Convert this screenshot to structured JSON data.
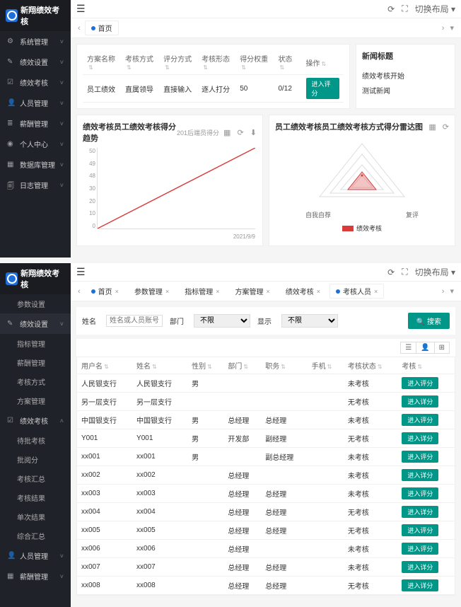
{
  "app": {
    "name": "新翔绩效考核"
  },
  "topbar": {
    "refresh": "⟳",
    "fullscreen": "⛶",
    "menu": "切换布局",
    "menu_chev": "▾"
  },
  "nav1": [
    {
      "icon": "⚙",
      "label": "系统管理",
      "chev": "˅"
    },
    {
      "icon": "✎",
      "label": "绩效设置",
      "chev": "˅"
    },
    {
      "icon": "☑",
      "label": "绩效考核",
      "chev": "˅"
    },
    {
      "icon": "👤",
      "label": "人员管理",
      "chev": "˅"
    },
    {
      "icon": "≣",
      "label": "薪酬管理",
      "chev": "˅"
    },
    {
      "icon": "◉",
      "label": "个人中心",
      "chev": "˅"
    },
    {
      "icon": "▦",
      "label": "数据库管理",
      "chev": "˅"
    },
    {
      "icon": "🗐",
      "label": "日志管理",
      "chev": "˅"
    }
  ],
  "tabs1": {
    "home": "首页"
  },
  "plan_table": {
    "headers": [
      "方案名称",
      "考核方式",
      "评分方式",
      "考核形态",
      "得分权重",
      "状态",
      "操作"
    ],
    "row": [
      "员工绩效",
      "直属领导",
      "直接输入",
      "逐人打分",
      "50",
      "0/12"
    ],
    "action": "进入评分"
  },
  "news": {
    "title": "新闻标题",
    "items": [
      "绩效考核开始",
      "测试新闻"
    ]
  },
  "trend": {
    "title": "绩效考核员工绩效考核得分趋势",
    "subtitle": "201后端员得分",
    "yticks": [
      "50",
      "49",
      "48",
      "30",
      "20",
      "10",
      "0"
    ],
    "xlabel": "2021/9/9",
    "line_color": "#d93a3a",
    "data": [
      [
        0,
        0
      ],
      [
        100,
        100
      ]
    ]
  },
  "radar": {
    "title": "员工绩效考核员工绩效考核方式得分雷达图",
    "labels": [
      "自我自荐",
      "复评"
    ],
    "legend": "绩效考核",
    "color": "#d93a3a"
  },
  "nav2_top": [
    {
      "label": "参数设置"
    }
  ],
  "nav2_active": {
    "icon": "✎",
    "label": "绩效设置"
  },
  "nav2_subs": [
    "指标管理",
    "薪酬管理",
    "考核方式",
    "方案管理"
  ],
  "nav2_block": {
    "icon": "☑",
    "label": "绩效考核"
  },
  "nav2_subs2": [
    "待批考核",
    "批阅分",
    "考核汇总",
    "考核结果",
    "单次结果",
    "综合汇总"
  ],
  "nav2_bottom": [
    {
      "icon": "👤",
      "label": "人员管理",
      "chev": "˅"
    },
    {
      "icon": "▦",
      "label": "薪酬管理",
      "chev": "˅"
    }
  ],
  "tabs2": [
    {
      "label": "首页",
      "active": false,
      "dot": true
    },
    {
      "label": "参数管理",
      "active": false
    },
    {
      "label": "指标管理",
      "active": false
    },
    {
      "label": "方案管理",
      "active": false
    },
    {
      "label": "绩效考核",
      "active": false
    },
    {
      "label": "考核人员",
      "active": true,
      "dot": true
    }
  ],
  "filters": {
    "name_label": "姓名",
    "name_ph": "姓名或人员账号搜索",
    "dept_label": "部门",
    "dept_val": "不限",
    "status_label": "显示",
    "status_val": "不限",
    "search": "搜索",
    "search_icon": "🔍"
  },
  "toolbar": [
    "☰",
    "👤",
    "⊞"
  ],
  "person_table": {
    "headers": [
      "用户名",
      "姓名",
      "性别",
      "部门",
      "职务",
      "手机",
      "考核状态",
      "考核"
    ],
    "rows": [
      [
        "人民银支行",
        "人民银支行",
        "男",
        "",
        "",
        "",
        "未考核",
        "进入评分"
      ],
      [
        "另一层支行",
        "另一层支行",
        "",
        "",
        "",
        "",
        "无考核",
        "进入详分"
      ],
      [
        "中国银支行",
        "中国银支行",
        "男",
        "总经理",
        "总经理",
        "",
        "未考核",
        "进入评分"
      ],
      [
        "Y001",
        "Y001",
        "男",
        "开发部",
        "副经理",
        "",
        "无考核",
        "进入详分"
      ],
      [
        "xx001",
        "xx001",
        "男",
        "",
        "副总经理",
        "",
        "未考核",
        "进入评分"
      ],
      [
        "xx002",
        "xx002",
        "",
        "总经理",
        "",
        "",
        "未考核",
        "进入详分"
      ],
      [
        "xx003",
        "xx003",
        "",
        "总经理",
        "总经理",
        "",
        "未考核",
        "进入评分"
      ],
      [
        "xx004",
        "xx004",
        "",
        "总经理",
        "总经理",
        "",
        "无考核",
        "进入详分"
      ],
      [
        "xx005",
        "xx005",
        "",
        "总经理",
        "总经理",
        "",
        "无考核",
        "进入评分"
      ],
      [
        "xx006",
        "xx006",
        "",
        "总经理",
        "",
        "",
        "未考核",
        "进入评分"
      ],
      [
        "xx007",
        "xx007",
        "",
        "总经理",
        "总经理",
        "",
        "未考核",
        "进入详分"
      ],
      [
        "xx008",
        "xx008",
        "",
        "总经理",
        "总经理",
        "",
        "无考核",
        "进入详分"
      ]
    ]
  },
  "colors": {
    "accent": "#009688",
    "brand": "#1e6fd9",
    "danger": "#d93a3a"
  }
}
